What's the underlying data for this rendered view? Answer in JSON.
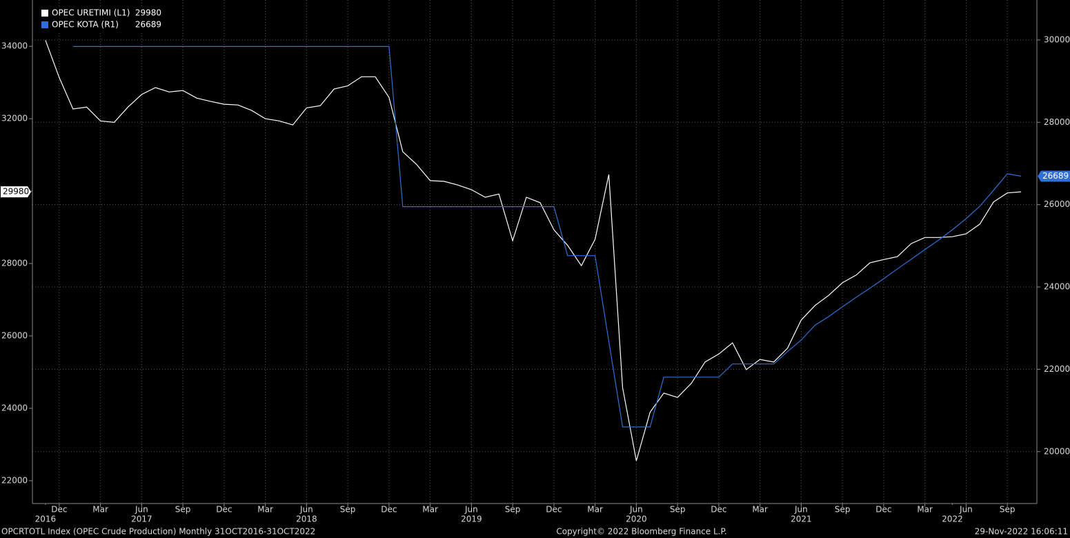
{
  "chart_data": {
    "type": "line",
    "x": [
      "2016-11",
      "2016-12",
      "2017-01",
      "2017-02",
      "2017-03",
      "2017-04",
      "2017-05",
      "2017-06",
      "2017-07",
      "2017-08",
      "2017-09",
      "2017-10",
      "2017-11",
      "2017-12",
      "2018-01",
      "2018-02",
      "2018-03",
      "2018-04",
      "2018-05",
      "2018-06",
      "2018-07",
      "2018-08",
      "2018-09",
      "2018-10",
      "2018-11",
      "2018-12",
      "2019-01",
      "2019-02",
      "2019-03",
      "2019-04",
      "2019-05",
      "2019-06",
      "2019-07",
      "2019-08",
      "2019-09",
      "2019-10",
      "2019-11",
      "2019-12",
      "2020-01",
      "2020-02",
      "2020-03",
      "2020-04",
      "2020-05",
      "2020-06",
      "2020-07",
      "2020-08",
      "2020-09",
      "2020-10",
      "2020-11",
      "2020-12",
      "2021-01",
      "2021-02",
      "2021-03",
      "2021-04",
      "2021-05",
      "2021-06",
      "2021-07",
      "2021-08",
      "2021-09",
      "2021-10",
      "2021-11",
      "2021-12",
      "2022-01",
      "2022-02",
      "2022-03",
      "2022-04",
      "2022-05",
      "2022-06",
      "2022-07",
      "2022-08",
      "2022-09",
      "2022-10"
    ],
    "series": [
      {
        "name": "OPEC URETIMI (L1)",
        "color": "#ffffff",
        "axis": "y",
        "values": [
          34170,
          33140,
          32270,
          32320,
          31940,
          31900,
          32320,
          32670,
          32860,
          32740,
          32780,
          32570,
          32480,
          32400,
          32380,
          32230,
          32000,
          31940,
          31830,
          32300,
          32360,
          32820,
          32910,
          33160,
          33160,
          32590,
          31090,
          30740,
          30290,
          30270,
          30170,
          30040,
          29830,
          29920,
          28630,
          29830,
          29680,
          28930,
          28500,
          27940,
          28670,
          30460,
          24570,
          22550,
          23890,
          24420,
          24300,
          24690,
          25280,
          25500,
          25810,
          25070,
          25350,
          25280,
          25660,
          26440,
          26840,
          27120,
          27470,
          27680,
          28020,
          28110,
          28190,
          28550,
          28720,
          28720,
          28740,
          28820,
          29090,
          29700,
          29950,
          29980
        ]
      },
      {
        "name": "OPEC KOTA (R1)",
        "color": "#2f6fd6",
        "axis": "y2",
        "values": [
          null,
          null,
          29840,
          29840,
          29840,
          29840,
          29840,
          29840,
          29840,
          29840,
          29840,
          29840,
          29840,
          29840,
          29840,
          29840,
          29840,
          29840,
          29840,
          29840,
          29840,
          29840,
          29840,
          29840,
          29840,
          29840,
          25950,
          25950,
          25950,
          25950,
          25950,
          25950,
          25950,
          25950,
          25950,
          25950,
          25950,
          25950,
          24760,
          24760,
          24760,
          22680,
          20600,
          20600,
          20600,
          21810,
          21810,
          21810,
          21810,
          21810,
          22130,
          22130,
          22130,
          22130,
          22430,
          22710,
          23070,
          23280,
          23520,
          23750,
          23970,
          24200,
          24440,
          24670,
          24910,
          25140,
          25390,
          25660,
          25960,
          26350,
          26750,
          26689
        ]
      }
    ],
    "xlim": [
      "2016-10",
      "2022-11"
    ],
    "xticks": [
      {
        "value": "2016-12",
        "label": "Dec"
      },
      {
        "value": "2017-03",
        "label": "Mar"
      },
      {
        "value": "2017-06",
        "label": "Jun"
      },
      {
        "value": "2017-09",
        "label": "Sep"
      },
      {
        "value": "2017-12",
        "label": "Dec"
      },
      {
        "value": "2018-03",
        "label": "Mar"
      },
      {
        "value": "2018-06",
        "label": "Jun"
      },
      {
        "value": "2018-09",
        "label": "Sep"
      },
      {
        "value": "2018-12",
        "label": "Dec"
      },
      {
        "value": "2019-03",
        "label": "Mar"
      },
      {
        "value": "2019-06",
        "label": "Jun"
      },
      {
        "value": "2019-09",
        "label": "Sep"
      },
      {
        "value": "2019-12",
        "label": "Dec"
      },
      {
        "value": "2020-03",
        "label": "Mar"
      },
      {
        "value": "2020-06",
        "label": "Jun"
      },
      {
        "value": "2020-09",
        "label": "Sep"
      },
      {
        "value": "2020-12",
        "label": "Dec"
      },
      {
        "value": "2021-03",
        "label": "Mar"
      },
      {
        "value": "2021-06",
        "label": "Jun"
      },
      {
        "value": "2021-09",
        "label": "Sep"
      },
      {
        "value": "2021-12",
        "label": "Dec"
      },
      {
        "value": "2022-03",
        "label": "Mar"
      },
      {
        "value": "2022-06",
        "label": "Jun"
      },
      {
        "value": "2022-09",
        "label": "Sep"
      }
    ],
    "year_ticks": [
      {
        "value": "2016-11",
        "label": "2016"
      },
      {
        "value": "2017-06",
        "label": "2017"
      },
      {
        "value": "2018-06",
        "label": "2018"
      },
      {
        "value": "2019-06",
        "label": "2019"
      },
      {
        "value": "2020-06",
        "label": "2020"
      },
      {
        "value": "2021-06",
        "label": "2021"
      },
      {
        "value": "2022-05",
        "label": "2022"
      }
    ],
    "ylim": [
      21370,
      35280
    ],
    "yticks": [
      22000,
      24000,
      26000,
      28000,
      30000,
      32000,
      34000
    ],
    "y2lim": [
      18740,
      30970
    ],
    "y2ticks": [
      20000,
      22000,
      24000,
      26000,
      28000,
      30000
    ],
    "grid": true,
    "legend": "top-left",
    "footer": {
      "left": "OPCRTOTL Index (OPEC Crude Production)  Monthly 31OCT2016-31OCT2022",
      "center": "Copyright© 2022 Bloomberg Finance L.P.",
      "right": "29-Nov-2022 16:06:11"
    }
  }
}
